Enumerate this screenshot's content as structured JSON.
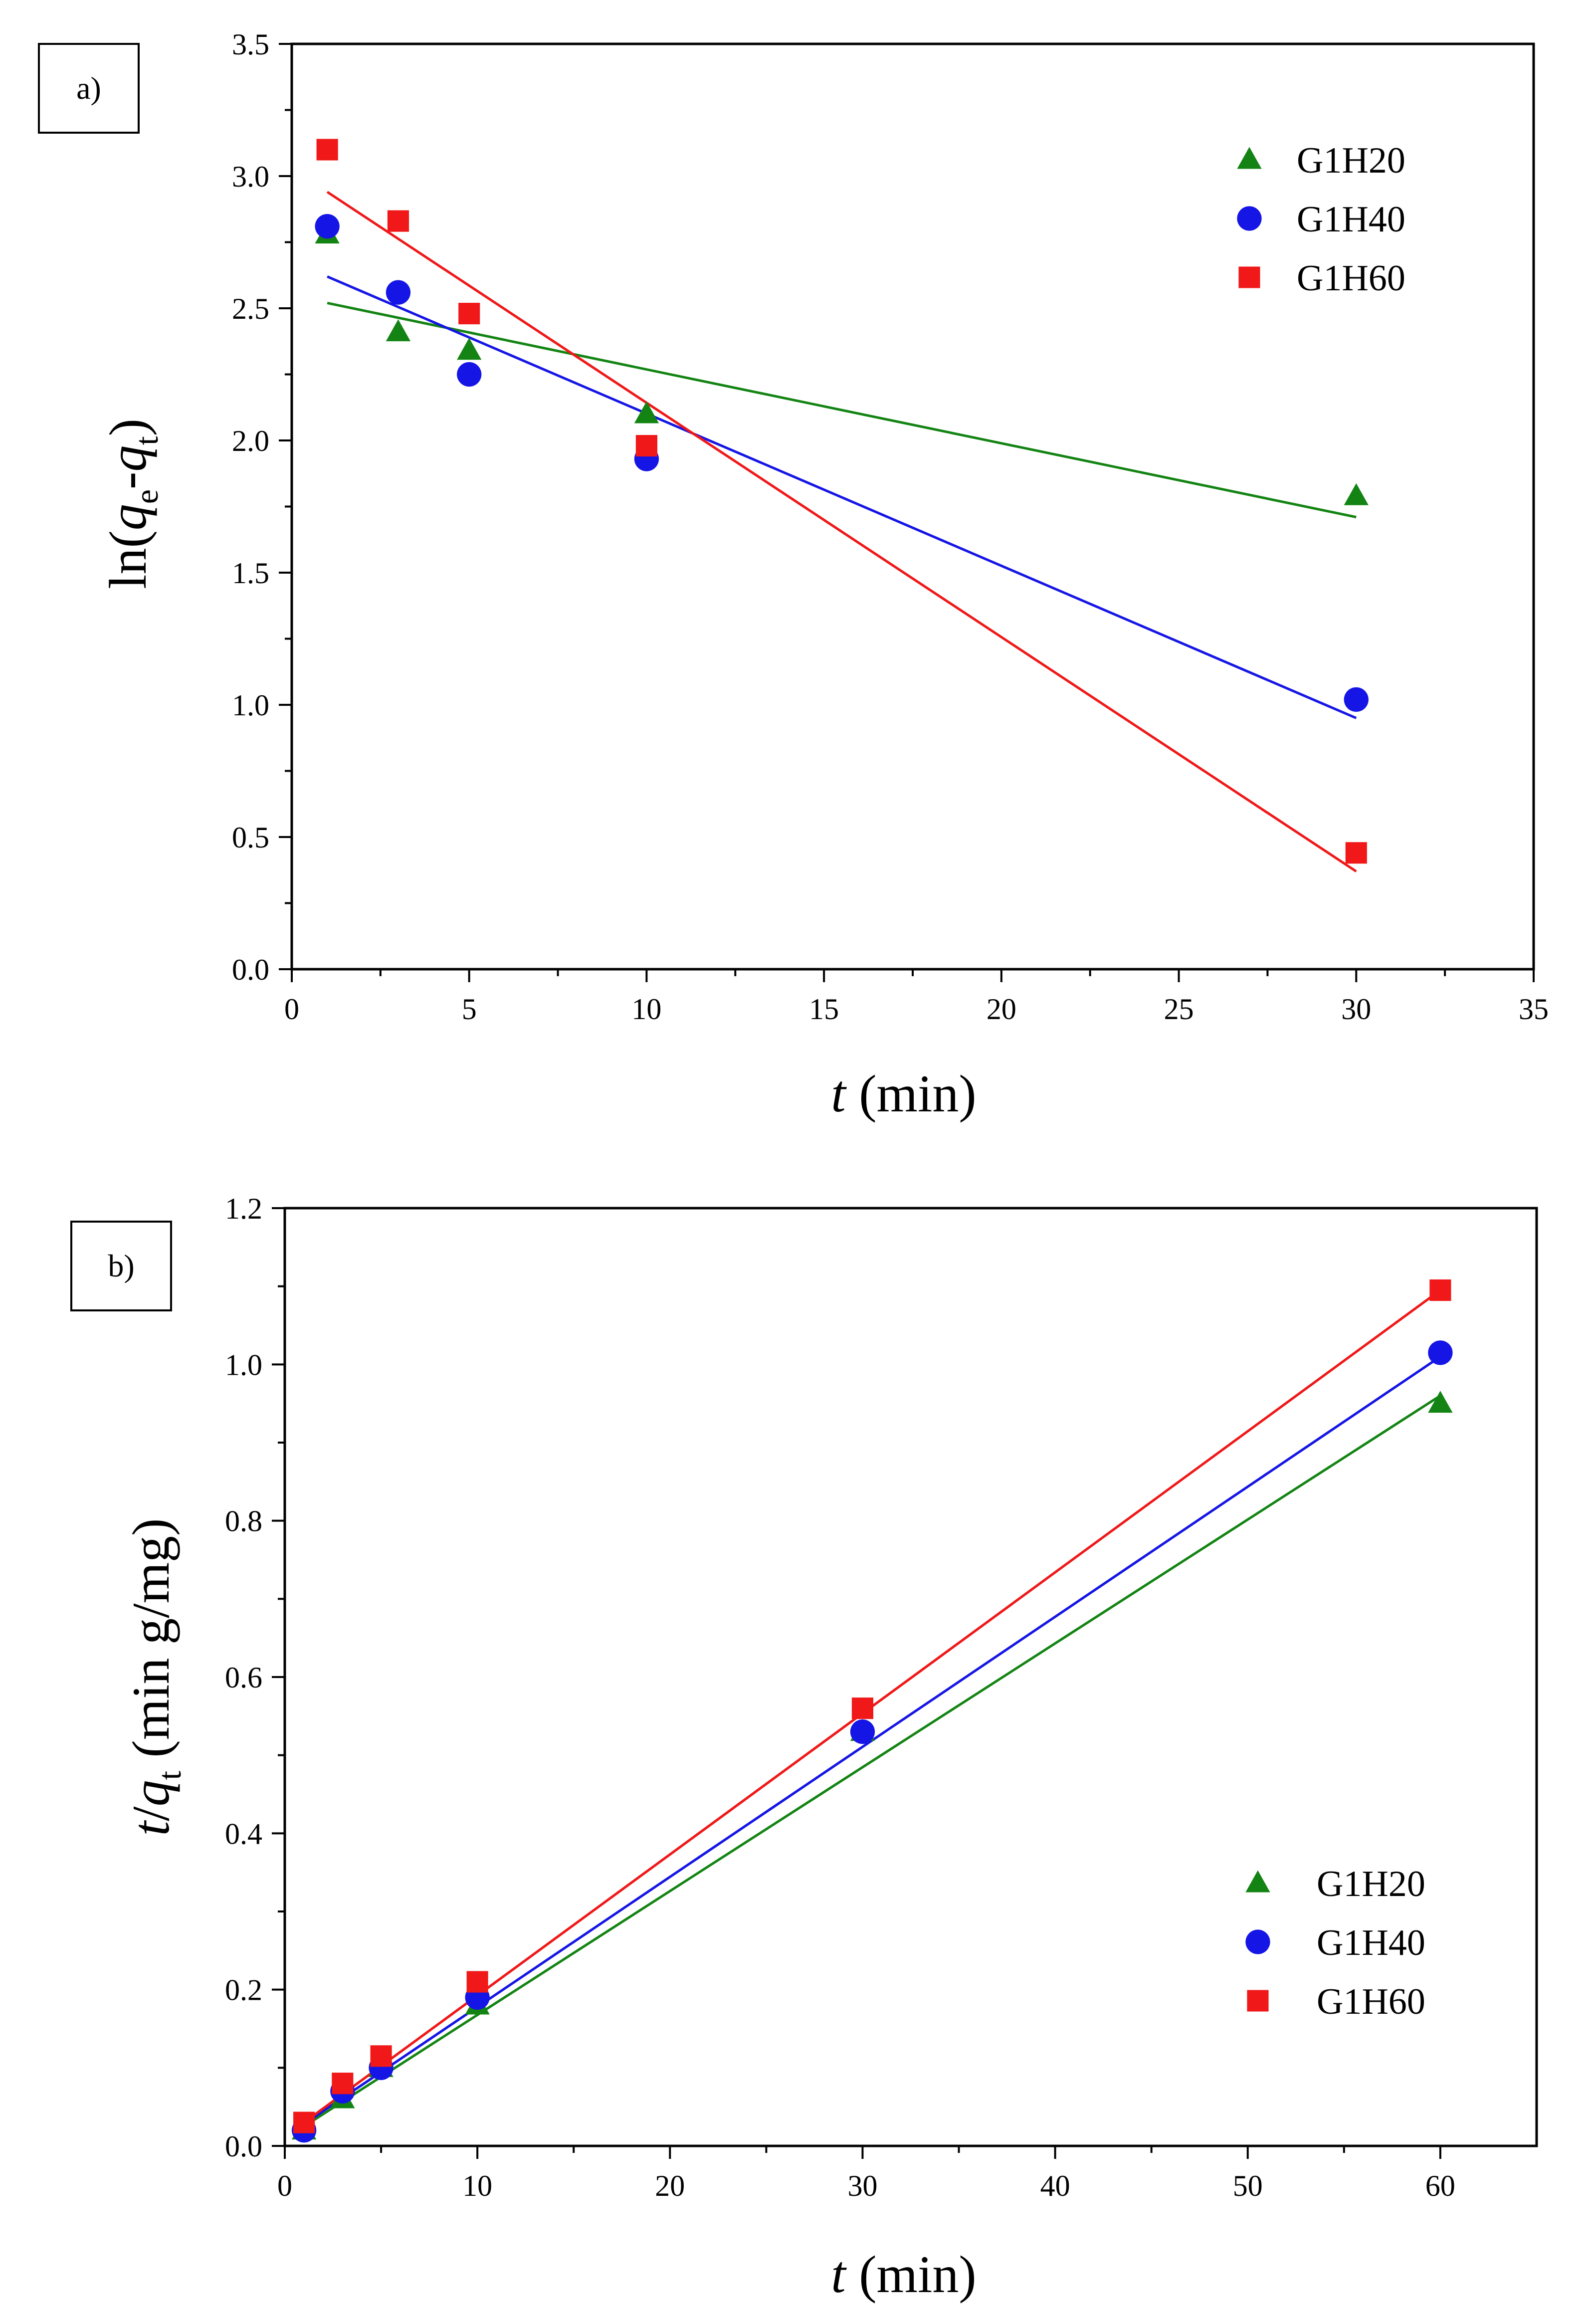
{
  "chart_data": [
    {
      "type": "scatter",
      "panel_label": "a)",
      "xlabel": "t (min)",
      "ylabel": "ln(qe-qt)",
      "xlim": [
        0,
        35
      ],
      "ylim": [
        0,
        3.5
      ],
      "xticks": [
        "0",
        "5",
        "10",
        "15",
        "20",
        "25",
        "30",
        "35"
      ],
      "yticks": [
        "0.0",
        "0.5",
        "1.0",
        "1.5",
        "2.0",
        "2.5",
        "3.0",
        "3.5"
      ],
      "x": [
        1,
        3,
        5,
        10,
        30
      ],
      "legend_position": "top-right",
      "series": [
        {
          "name": "G1H20",
          "marker": "triangle",
          "color": "#138413",
          "values": [
            2.78,
            2.41,
            2.34,
            2.1,
            1.79
          ],
          "fit": [
            [
              1,
              2.52
            ],
            [
              30,
              1.71
            ]
          ]
        },
        {
          "name": "G1H40",
          "marker": "circle",
          "color": "#1515e6",
          "values": [
            2.81,
            2.56,
            2.25,
            1.93,
            1.02
          ],
          "fit": [
            [
              1,
              2.62
            ],
            [
              30,
              0.95
            ]
          ]
        },
        {
          "name": "G1H60",
          "marker": "square",
          "color": "#f01818",
          "values": [
            3.1,
            2.83,
            2.48,
            1.98,
            0.44
          ],
          "fit": [
            [
              1,
              2.94
            ],
            [
              30,
              0.37
            ]
          ]
        }
      ]
    },
    {
      "type": "scatter",
      "panel_label": "b)",
      "xlabel": "t (min)",
      "ylabel": "t/qt (min g/mg)",
      "xlim": [
        0,
        65
      ],
      "ylim": [
        0,
        1.2
      ],
      "xticks": [
        "0",
        "10",
        "20",
        "30",
        "40",
        "50",
        "60"
      ],
      "yticks": [
        "0.0",
        "0.2",
        "0.4",
        "0.6",
        "0.8",
        "1.0",
        "1.2"
      ],
      "x": [
        1,
        3,
        5,
        10,
        30,
        60
      ],
      "legend_position": "bottom-right",
      "series": [
        {
          "name": "G1H20",
          "marker": "triangle",
          "color": "#138413",
          "values": [
            0.02,
            0.06,
            0.1,
            0.18,
            0.53,
            0.95
          ],
          "fit": [
            [
              1,
              0.025
            ],
            [
              60,
              0.96
            ]
          ]
        },
        {
          "name": "G1H40",
          "marker": "circle",
          "color": "#1515e6",
          "values": [
            0.02,
            0.07,
            0.1,
            0.19,
            0.53,
            1.015
          ],
          "fit": [
            [
              1,
              0.028
            ],
            [
              60,
              1.01
            ]
          ]
        },
        {
          "name": "G1H60",
          "marker": "square",
          "color": "#f01818",
          "values": [
            0.03,
            0.08,
            0.115,
            0.21,
            0.56,
            1.095
          ],
          "fit": [
            [
              1,
              0.03
            ],
            [
              60,
              1.095
            ]
          ]
        }
      ]
    }
  ]
}
